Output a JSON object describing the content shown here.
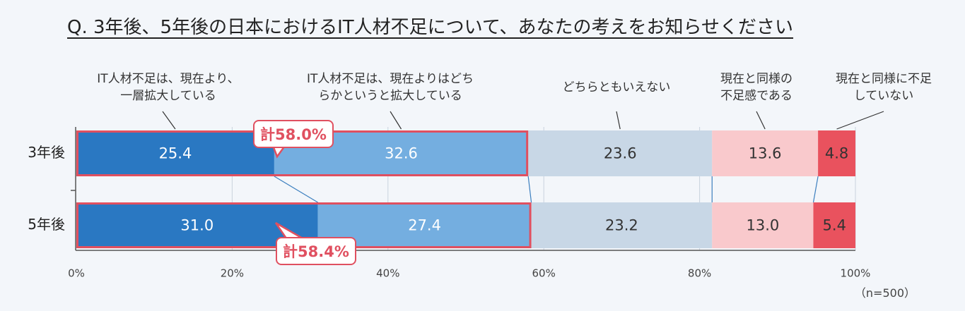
{
  "chart_data": {
    "type": "stacked-bar-horizontal",
    "title": "Q. 3年後、5年後の日本におけるIT人材不足について、あなたの考えをお知らせください",
    "categories": [
      "3年後",
      "5年後"
    ],
    "series": [
      {
        "name": "IT人材不足は、現在より、\n一層拡大している",
        "color": "#2a78c2",
        "values": [
          25.4,
          31.0
        ],
        "value_labels": [
          "25.4",
          "31.0"
        ]
      },
      {
        "name": "IT人材不足は、現在よりはどち\nらかというと拡大している",
        "color": "#74aee0",
        "values": [
          32.6,
          27.4
        ],
        "value_labels": [
          "32.6",
          "27.4"
        ]
      },
      {
        "name": "どちらともいえない",
        "color": "#c8d7e6",
        "values": [
          23.6,
          23.2
        ],
        "value_labels": [
          "23.6",
          "23.2"
        ]
      },
      {
        "name": "現在と同様の\n不足感である",
        "color": "#f9c9cc",
        "values": [
          13.6,
          13.0
        ],
        "value_labels": [
          "13.6",
          "13.0"
        ]
      },
      {
        "name": "現在と同様に不足\nしていない",
        "color": "#e9525e",
        "values": [
          4.8,
          5.4
        ],
        "value_labels": [
          "4.8",
          "5.4"
        ]
      }
    ],
    "annotations": [
      "計58.0%",
      "計58.4%"
    ],
    "note": "（n=500）",
    "xlim": [
      0,
      100
    ],
    "xticks": [
      {
        "value": 0,
        "label": "0%"
      },
      {
        "value": 20,
        "label": "20%"
      },
      {
        "value": 40,
        "label": "40%"
      },
      {
        "value": 60,
        "label": "60%"
      },
      {
        "value": 80,
        "label": "80%"
      },
      {
        "value": 100,
        "label": "100%"
      }
    ],
    "grid": true
  }
}
